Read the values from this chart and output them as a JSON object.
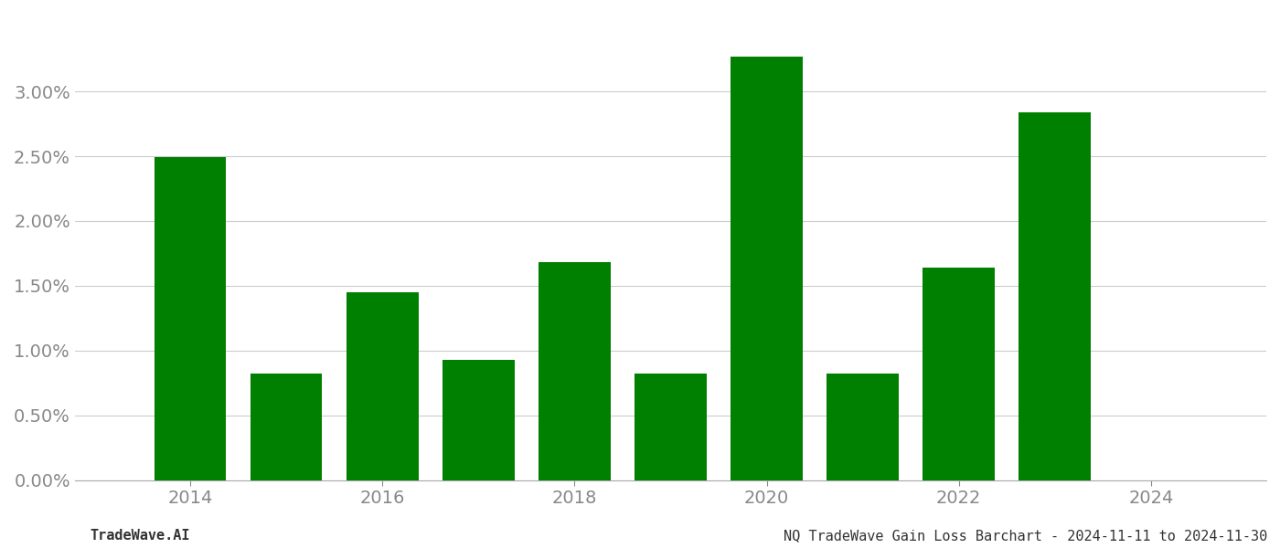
{
  "years": [
    2014,
    2015,
    2016,
    2017,
    2018,
    2019,
    2020,
    2021,
    2022,
    2023
  ],
  "values": [
    0.0249,
    0.0082,
    0.0145,
    0.0093,
    0.0168,
    0.0082,
    0.0327,
    0.0082,
    0.0164,
    0.0284
  ],
  "bar_color": "#008000",
  "background_color": "#ffffff",
  "ylim": [
    0,
    0.036
  ],
  "yticks": [
    0.0,
    0.005,
    0.01,
    0.015,
    0.02,
    0.025,
    0.03
  ],
  "ytick_labels": [
    "0.00%",
    "0.50%",
    "1.00%",
    "1.50%",
    "2.00%",
    "2.50%",
    "3.00%"
  ],
  "tick_fontsize": 14,
  "footer_left": "TradeWave.AI",
  "footer_right": "NQ TradeWave Gain Loss Barchart - 2024-11-11 to 2024-11-30",
  "footer_fontsize": 11,
  "grid_color": "#cccccc",
  "grid_linewidth": 0.8,
  "bar_width": 0.75,
  "xtick_years": [
    2014,
    2016,
    2018,
    2020,
    2022,
    2024
  ],
  "xtick_fontsize": 14,
  "xlim": [
    2012.8,
    2025.2
  ]
}
